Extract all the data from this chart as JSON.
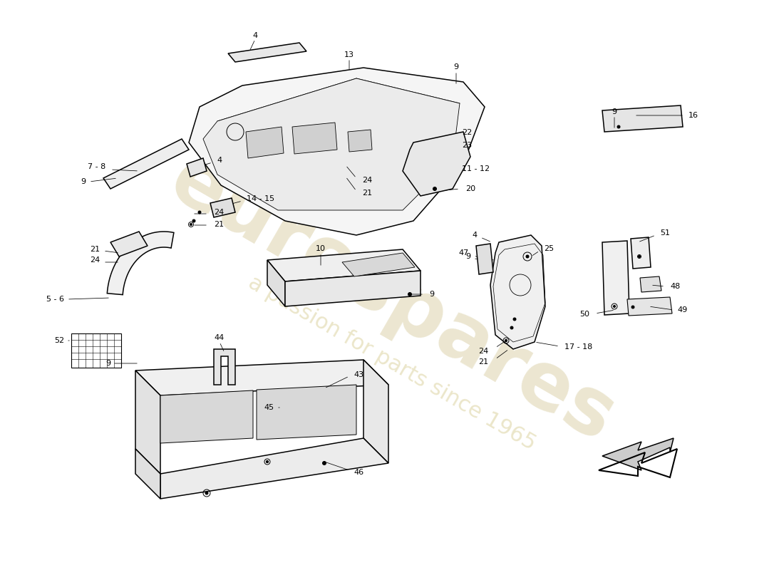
{
  "bg_color": "#ffffff",
  "watermark_color_1": "#c8b87a",
  "watermark_color_2": "#d4c88a",
  "lw_main": 1.1,
  "lw_thin": 0.6,
  "lw_co": 0.55,
  "fs": 8.0
}
